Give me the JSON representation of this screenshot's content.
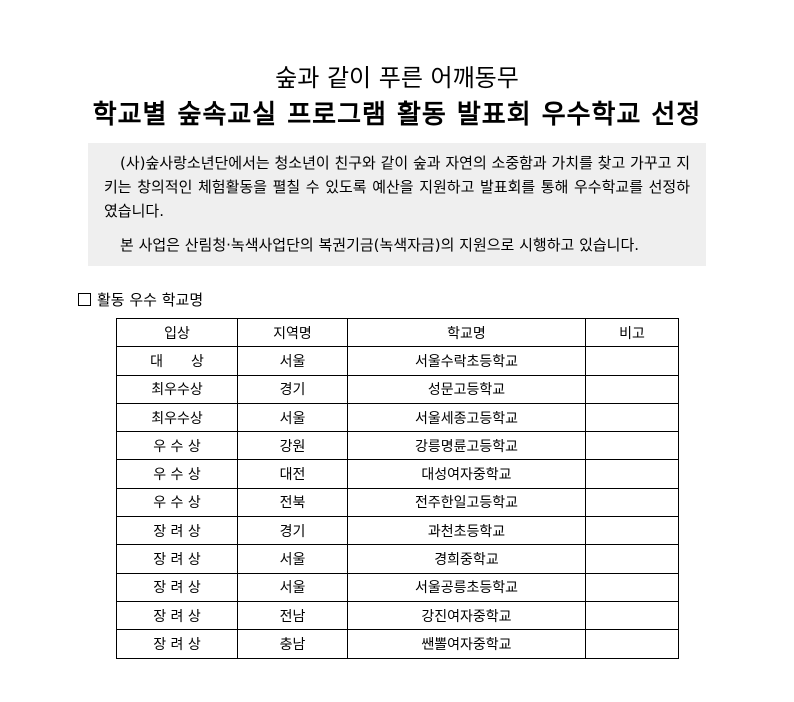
{
  "title": "숲과 같이 푸른 어깨동무",
  "subtitle": "학교별 숲속교실 프로그램 활동 발표회 우수학교 선정",
  "intro": {
    "p1": "(사)숲사랑소년단에서는 청소년이 친구와 같이 숲과 자연의 소중함과 가치를 찾고 가꾸고 지키는 창의적인 체험활동을 펼칠 수 있도록 예산을 지원하고 발표회를 통해 우수학교를 선정하였습니다.",
    "p2": "본 사업은 산림청·녹색사업단의 복권기금(녹색자금)의 지원으로 시행하고 있습니다."
  },
  "section_label": "활동 우수 학교명",
  "table": {
    "headers": [
      "입상",
      "지역명",
      "학교명",
      "비고"
    ],
    "rows": [
      [
        "대　　상",
        "서울",
        "서울수락초등학교",
        ""
      ],
      [
        "최우수상",
        "경기",
        "성문고등학교",
        ""
      ],
      [
        "최우수상",
        "서울",
        "서울세종고등학교",
        ""
      ],
      [
        "우 수 상",
        "강원",
        "강릉명륜고등학교",
        ""
      ],
      [
        "우 수 상",
        "대전",
        "대성여자중학교",
        ""
      ],
      [
        "우 수 상",
        "전북",
        "전주한일고등학교",
        ""
      ],
      [
        "장 려 상",
        "경기",
        "과천초등학교",
        ""
      ],
      [
        "장 려 상",
        "서울",
        "경희중학교",
        ""
      ],
      [
        "장 려 상",
        "서울",
        "서울공릉초등학교",
        ""
      ],
      [
        "장 려 상",
        "전남",
        "강진여자중학교",
        ""
      ],
      [
        "장 려 상",
        "충남",
        "쌘뽈여자중학교",
        ""
      ]
    ]
  }
}
